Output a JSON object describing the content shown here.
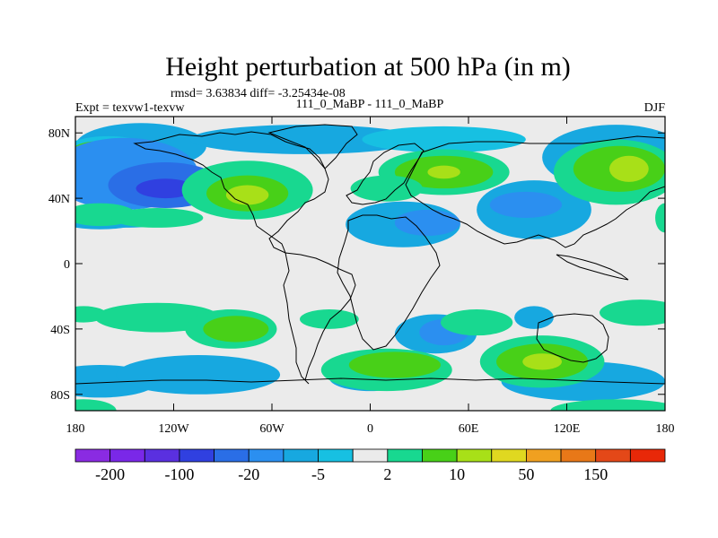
{
  "chart_data": {
    "type": "filled-contour-map",
    "title": "Height perturbation at 500 hPa (in m)",
    "stats_line": "rmsd= 3.63834 diff= -3.25434e-08",
    "left_label": "Expt = texvw1-texvw",
    "center_label": "111_0_MaBP - 111_0_MaBP",
    "right_label": "DJF",
    "x_ticks": [
      {
        "value": -180,
        "label": "180"
      },
      {
        "value": -120,
        "label": "120W"
      },
      {
        "value": -60,
        "label": "60W"
      },
      {
        "value": 0,
        "label": "0"
      },
      {
        "value": 60,
        "label": "60E"
      },
      {
        "value": 120,
        "label": "120E"
      },
      {
        "value": 180,
        "label": "180"
      }
    ],
    "y_ticks": [
      {
        "value": 80,
        "label": "80N"
      },
      {
        "value": 40,
        "label": "40N"
      },
      {
        "value": 0,
        "label": "0"
      },
      {
        "value": -40,
        "label": "40S"
      },
      {
        "value": -80,
        "label": "80S"
      }
    ],
    "xlim": [
      -180,
      180
    ],
    "ylim": [
      -90,
      90
    ],
    "colorbar": {
      "colors": [
        "#8a2be2",
        "#7a28e8",
        "#5a30e0",
        "#3040e0",
        "#2a6ee6",
        "#2b8ff0",
        "#17a8e0",
        "#17c0e2",
        "#ebebeb",
        "#18d890",
        "#48d018",
        "#a8e018",
        "#e0d820",
        "#f0a020",
        "#e87818",
        "#e44818",
        "#e82808"
      ],
      "labels": [
        {
          "boundary": 1,
          "text": "-200"
        },
        {
          "boundary": 3,
          "text": "-100"
        },
        {
          "boundary": 5,
          "text": "-20"
        },
        {
          "boundary": 7,
          "text": "-5"
        },
        {
          "boundary": 9,
          "text": "2"
        },
        {
          "boundary": 11,
          "text": "10"
        },
        {
          "boundary": 13,
          "text": "50"
        },
        {
          "boundary": 15,
          "text": "150"
        }
      ]
    },
    "fields": [
      {
        "level": 6,
        "lon": -140,
        "lat": 72,
        "rlon": 40,
        "rlat": 14
      },
      {
        "level": 7,
        "lon": -160,
        "lat": 70,
        "rlon": 26,
        "rlat": 8
      },
      {
        "level": 10,
        "lon": -165,
        "lat": 70,
        "rlon": 16,
        "rlat": 5
      },
      {
        "level": 5,
        "lon": -150,
        "lat": 55,
        "rlon": 45,
        "rlat": 22
      },
      {
        "level": 4,
        "lon": -125,
        "lat": 48,
        "rlon": 35,
        "rlat": 14
      },
      {
        "level": 3,
        "lon": -125,
        "lat": 46,
        "rlon": 18,
        "rlat": 6
      },
      {
        "level": 6,
        "lon": -40,
        "lat": 76,
        "rlon": 70,
        "rlat": 9
      },
      {
        "level": 7,
        "lon": 45,
        "lat": 76,
        "rlon": 50,
        "rlat": 8
      },
      {
        "level": 6,
        "lon": -165,
        "lat": 28,
        "rlon": 28,
        "rlat": 7
      },
      {
        "level": 6,
        "lon": -150,
        "lat": 27,
        "rlon": 30,
        "rlat": 5
      },
      {
        "level": 6,
        "lon": 20,
        "lat": 24,
        "rlon": 35,
        "rlat": 14
      },
      {
        "level": 5,
        "lon": 35,
        "lat": 25,
        "rlon": 20,
        "rlat": 8
      },
      {
        "level": 6,
        "lon": 100,
        "lat": 33,
        "rlon": 35,
        "rlat": 18
      },
      {
        "level": 5,
        "lon": 95,
        "lat": 36,
        "rlon": 22,
        "rlat": 8
      },
      {
        "level": 6,
        "lon": 150,
        "lat": 65,
        "rlon": 45,
        "rlat": 20
      },
      {
        "level": 6,
        "lon": -165,
        "lat": -72,
        "rlon": 35,
        "rlat": 10
      },
      {
        "level": 6,
        "lon": -105,
        "lat": -68,
        "rlon": 50,
        "rlat": 12
      },
      {
        "level": 6,
        "lon": 130,
        "lat": -72,
        "rlon": 50,
        "rlat": 12
      },
      {
        "level": 6,
        "lon": 0,
        "lat": -70,
        "rlon": 25,
        "rlat": 8
      },
      {
        "level": 6,
        "lon": 40,
        "lat": -43,
        "rlon": 25,
        "rlat": 12
      },
      {
        "level": 5,
        "lon": 45,
        "lat": -42,
        "rlon": 15,
        "rlat": 8
      },
      {
        "level": 6,
        "lon": 100,
        "lat": -33,
        "rlon": 12,
        "rlat": 7
      },
      {
        "level": 9,
        "lon": -75,
        "lat": 45,
        "rlon": 40,
        "rlat": 18
      },
      {
        "level": 10,
        "lon": -75,
        "lat": 43,
        "rlon": 25,
        "rlat": 11
      },
      {
        "level": 11,
        "lon": -75,
        "lat": 42,
        "rlon": 13,
        "rlat": 6
      },
      {
        "level": 9,
        "lon": -165,
        "lat": 30,
        "rlon": 22,
        "rlat": 7
      },
      {
        "level": 9,
        "lon": -130,
        "lat": 28,
        "rlon": 28,
        "rlat": 6
      },
      {
        "level": 9,
        "lon": 45,
        "lat": 56,
        "rlon": 40,
        "rlat": 14
      },
      {
        "level": 10,
        "lon": 45,
        "lat": 56,
        "rlon": 30,
        "rlat": 10
      },
      {
        "level": 11,
        "lon": 45,
        "lat": 56,
        "rlon": 10,
        "rlat": 4
      },
      {
        "level": 9,
        "lon": 10,
        "lat": 46,
        "rlon": 22,
        "rlat": 8
      },
      {
        "level": 9,
        "lon": 150,
        "lat": 56,
        "rlon": 38,
        "rlat": 20
      },
      {
        "level": 10,
        "lon": 152,
        "lat": 58,
        "rlon": 28,
        "rlat": 14
      },
      {
        "level": 11,
        "lon": 158,
        "lat": 58,
        "rlon": 12,
        "rlat": 8
      },
      {
        "level": 9,
        "lon": 180,
        "lat": 28,
        "rlon": 6,
        "rlat": 9
      },
      {
        "level": 9,
        "lon": -175,
        "lat": -31,
        "rlon": 14,
        "rlat": 5
      },
      {
        "level": 9,
        "lon": -130,
        "lat": -33,
        "rlon": 38,
        "rlat": 9
      },
      {
        "level": 9,
        "lon": -85,
        "lat": -40,
        "rlon": 28,
        "rlat": 12
      },
      {
        "level": 10,
        "lon": -82,
        "lat": -40,
        "rlon": 20,
        "rlat": 8
      },
      {
        "level": 9,
        "lon": -25,
        "lat": -34,
        "rlon": 18,
        "rlat": 6
      },
      {
        "level": 9,
        "lon": 65,
        "lat": -36,
        "rlon": 22,
        "rlat": 8
      },
      {
        "level": 9,
        "lon": 5,
        "lat": -62,
        "rlon": 20,
        "rlat": 7
      },
      {
        "level": 9,
        "lon": 10,
        "lat": -65,
        "rlon": 40,
        "rlat": 13
      },
      {
        "level": 10,
        "lon": 15,
        "lat": -62,
        "rlon": 28,
        "rlat": 8
      },
      {
        "level": 9,
        "lon": 105,
        "lat": -60,
        "rlon": 38,
        "rlat": 16
      },
      {
        "level": 10,
        "lon": 105,
        "lat": -60,
        "rlon": 28,
        "rlat": 11
      },
      {
        "level": 11,
        "lon": 105,
        "lat": -60,
        "rlon": 12,
        "rlat": 5
      },
      {
        "level": 9,
        "lon": 165,
        "lat": -30,
        "rlon": 25,
        "rlat": 8
      },
      {
        "level": 9,
        "lon": -175,
        "lat": -90,
        "rlon": 20,
        "rlat": 7
      },
      {
        "level": 9,
        "lon": 150,
        "lat": -90,
        "rlon": 40,
        "rlat": 7
      }
    ]
  }
}
